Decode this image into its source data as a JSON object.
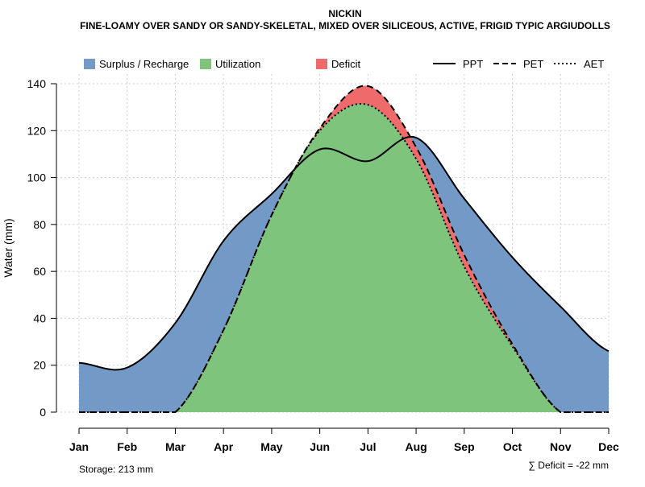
{
  "chart_data": {
    "type": "area",
    "title": "NICKIN",
    "subtitle": "FINE-LOAMY OVER SANDY OR SANDY-SKELETAL, MIXED OVER SILICEOUS, ACTIVE, FRIGID TYPIC ARGIUDOLLS",
    "xlabel": "",
    "ylabel": "Water (mm)",
    "categories": [
      "Jan",
      "Feb",
      "Mar",
      "Apr",
      "May",
      "Jun",
      "Jul",
      "Aug",
      "Sep",
      "Oct",
      "Nov",
      "Dec"
    ],
    "ylim": [
      0,
      140
    ],
    "yticks": [
      0,
      20,
      40,
      60,
      80,
      100,
      120,
      140
    ],
    "grid": true,
    "series": [
      {
        "name": "PPT",
        "style": "solid",
        "values": [
          21,
          19,
          38,
          73,
          93,
          112,
          107,
          117,
          91,
          66,
          45,
          26
        ]
      },
      {
        "name": "PET",
        "style": "dashed",
        "values": [
          0,
          0,
          0,
          35,
          84,
          121,
          139,
          113,
          67,
          29,
          0,
          0
        ]
      },
      {
        "name": "AET",
        "style": "dotted",
        "values": [
          0,
          0,
          0,
          35,
          84,
          120,
          131,
          108,
          62,
          28,
          0,
          0
        ]
      }
    ],
    "fills": [
      {
        "name": "Surplus / Recharge",
        "color": "#7399c6"
      },
      {
        "name": "Utilization",
        "color": "#7fc47c"
      },
      {
        "name": "Deficit",
        "color": "#ef6b6b"
      }
    ],
    "annotations": {
      "storage": "Storage: 213 mm",
      "deficit": "∑ Deficit = -22 mm"
    }
  }
}
